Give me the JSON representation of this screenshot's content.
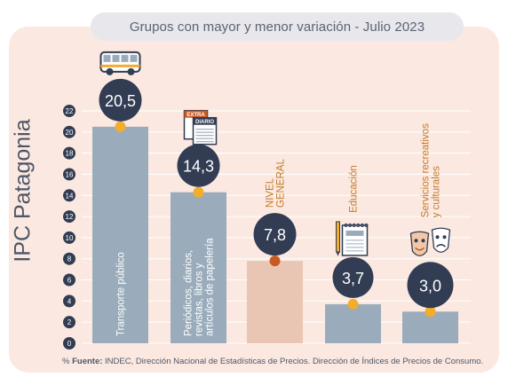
{
  "title": "Grupos con mayor y menor variación - Julio 2023",
  "side_label": "IPC Patagonia",
  "source": {
    "prefix": "%",
    "label": "Fuente:",
    "text": "INDEC, Dirección Nacional de Estadísticas de Precios. Dirección de Índices de Precios de Consumo."
  },
  "colors": {
    "bar": "#9aacbb",
    "bar_general": "#e9c6b3",
    "badge": "#323c53",
    "badge_text": "#ffffff",
    "dot": "#f3ad2c",
    "dot_general": "#c95a22",
    "grid": "#ffffff",
    "axis_circle": "#323c53",
    "label_light": "#ffffff",
    "label_orange": "#c47a2a"
  },
  "chart_data": {
    "type": "bar",
    "ylim": [
      0,
      22
    ],
    "yticks": [
      0,
      2,
      4,
      6,
      8,
      10,
      12,
      14,
      16,
      18,
      20,
      22
    ],
    "grid": true,
    "categories": [
      "Transporte público",
      "Periódicos, diarios, revistas, libros y artículos de papelería",
      "NIVEL GENERAL",
      "Educación",
      "Servicios recreativos y culturales"
    ],
    "label_lines": [
      [
        "Transporte público"
      ],
      [
        "Periódicos, diarios,",
        "revistas, libros y",
        "artículos de papelería"
      ],
      [
        "NIVEL",
        "GENERAL"
      ],
      [
        "Educación"
      ],
      [
        "Servicios recreativos",
        "y culturales"
      ]
    ],
    "values": [
      20.5,
      14.3,
      7.8,
      3.7,
      3.0
    ],
    "value_labels": [
      "20,5",
      "14,3",
      "7,8",
      "3,7",
      "3,0"
    ],
    "icons": [
      "bus-icon",
      "newspaper-icon",
      "",
      "notebook-icon",
      "theater-masks-icon"
    ],
    "icon_texts": {
      "newspaper_top": "EXTRA",
      "newspaper_main": "DIARIO"
    }
  }
}
